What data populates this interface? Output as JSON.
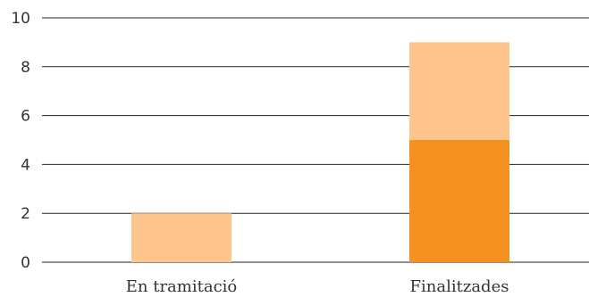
{
  "chart_data": {
    "type": "bar",
    "stacked": true,
    "categories": [
      "En tramitació",
      "Finalitzades"
    ],
    "series": [
      {
        "values": [
          0,
          5
        ],
        "color": "#f59120"
      },
      {
        "values": [
          2,
          4
        ],
        "color": "#fdc48c"
      }
    ],
    "ylim": [
      0,
      10
    ],
    "yticks": [
      0,
      2,
      4,
      6,
      8,
      10
    ],
    "xlabel": "",
    "ylabel": "",
    "title": "",
    "grid": true
  }
}
